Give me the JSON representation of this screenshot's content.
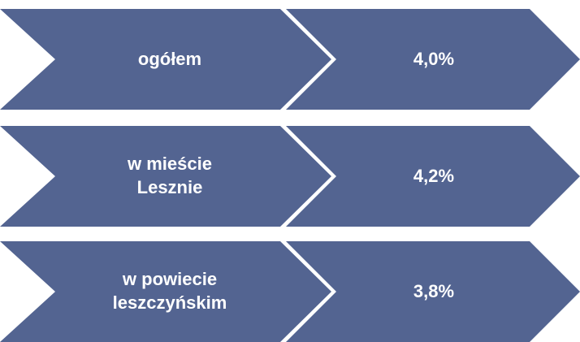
{
  "rows": [
    {
      "label": "ogółem",
      "value": "4,0%"
    },
    {
      "label": "w mieście Lesznie",
      "value": "4,2%"
    },
    {
      "label": "w powiecie leszczyńskim",
      "value": "3,8%"
    }
  ]
}
